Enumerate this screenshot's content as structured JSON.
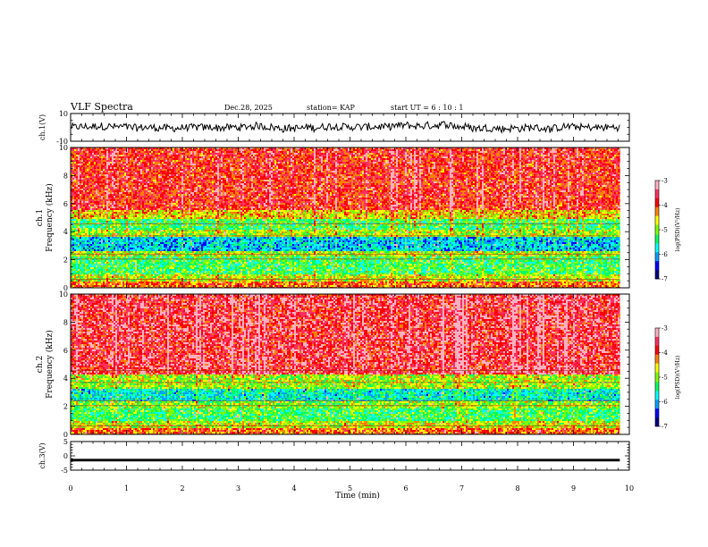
{
  "header": {
    "title": "VLF Spectra",
    "date": "Dec.28, 2025",
    "station": "station= KAP",
    "start": "start UT =  6 : 10 : 1"
  },
  "chart_data": [
    {
      "type": "line",
      "name": "ch1-waveform",
      "ylabel": "ch.1(V)",
      "ylim": [
        -10,
        10
      ],
      "yticks": [
        "10",
        "-10"
      ],
      "x_range_min": [
        0,
        9.83
      ],
      "description_values": "noisy waveform around 0 V"
    },
    {
      "type": "heatmap",
      "name": "ch1-spectrogram",
      "ylabel_top": "ch.1",
      "ylabel": "Frequency (kHz)",
      "ylim": [
        0,
        10
      ],
      "yticks": [
        "0",
        "2",
        "4",
        "6",
        "8",
        "10"
      ],
      "colorbar": {
        "label": "log(PSD)(V²/Hz)",
        "range": [
          -7,
          -3
        ],
        "ticks": [
          "-3",
          "-4",
          "-5",
          "-6",
          "-7"
        ]
      },
      "band_levels": [
        {
          "f": [
            0,
            0.4
          ],
          "level": -4.2
        },
        {
          "f": [
            0.4,
            0.9
          ],
          "level": -4.8
        },
        {
          "f": [
            0.9,
            2.2
          ],
          "level": -5.3
        },
        {
          "f": [
            2.2,
            2.6
          ],
          "level": -4.9
        },
        {
          "f": [
            2.6,
            3.6
          ],
          "level": -5.9
        },
        {
          "f": [
            3.6,
            4.1
          ],
          "level": -4.9
        },
        {
          "f": [
            4.1,
            4.9
          ],
          "level": -5.3
        },
        {
          "f": [
            4.9,
            5.6
          ],
          "level": -4.6
        },
        {
          "f": [
            5.6,
            10
          ],
          "level": -3.9
        }
      ]
    },
    {
      "type": "heatmap",
      "name": "ch2-spectrogram",
      "ylabel_top": "ch.2",
      "ylabel": "Frequency (kHz)",
      "ylim": [
        0,
        10
      ],
      "yticks": [
        "0",
        "2",
        "4",
        "6",
        "8",
        "10"
      ],
      "colorbar": {
        "label": "log(PSD)(V²/Hz)",
        "range": [
          -7,
          -3
        ],
        "ticks": [
          "-3",
          "-4",
          "-5",
          "-6",
          "-7"
        ]
      },
      "band_levels": [
        {
          "f": [
            0,
            0.4
          ],
          "level": -4.2
        },
        {
          "f": [
            0.4,
            0.9
          ],
          "level": -4.8
        },
        {
          "f": [
            0.9,
            1.9
          ],
          "level": -5.3
        },
        {
          "f": [
            1.9,
            2.3
          ],
          "level": -5.0
        },
        {
          "f": [
            2.3,
            3.3
          ],
          "level": -5.7
        },
        {
          "f": [
            3.3,
            4.3
          ],
          "level": -4.9
        },
        {
          "f": [
            4.3,
            10
          ],
          "level": -3.7
        }
      ]
    },
    {
      "type": "line",
      "name": "ch3-waveform",
      "ylabel": "ch.3(V)",
      "ylim": [
        -5,
        5
      ],
      "yticks": [
        "5",
        "0",
        "-5"
      ],
      "value": -1.5,
      "thickness_v": 0.9
    }
  ],
  "xaxis": {
    "label": "Time (min)",
    "range": [
      0,
      10
    ],
    "data_end": 9.83,
    "ticks": [
      "0",
      "1",
      "2",
      "3",
      "4",
      "5",
      "6",
      "7",
      "8",
      "9",
      "10"
    ]
  },
  "colors": {
    "palette": [
      "#000080",
      "#0000ff",
      "#00a0ff",
      "#00ffff",
      "#00ff60",
      "#7fff00",
      "#ffff00",
      "#ff8000",
      "#ff0000",
      "#ff3060",
      "#ffb0c0"
    ]
  }
}
